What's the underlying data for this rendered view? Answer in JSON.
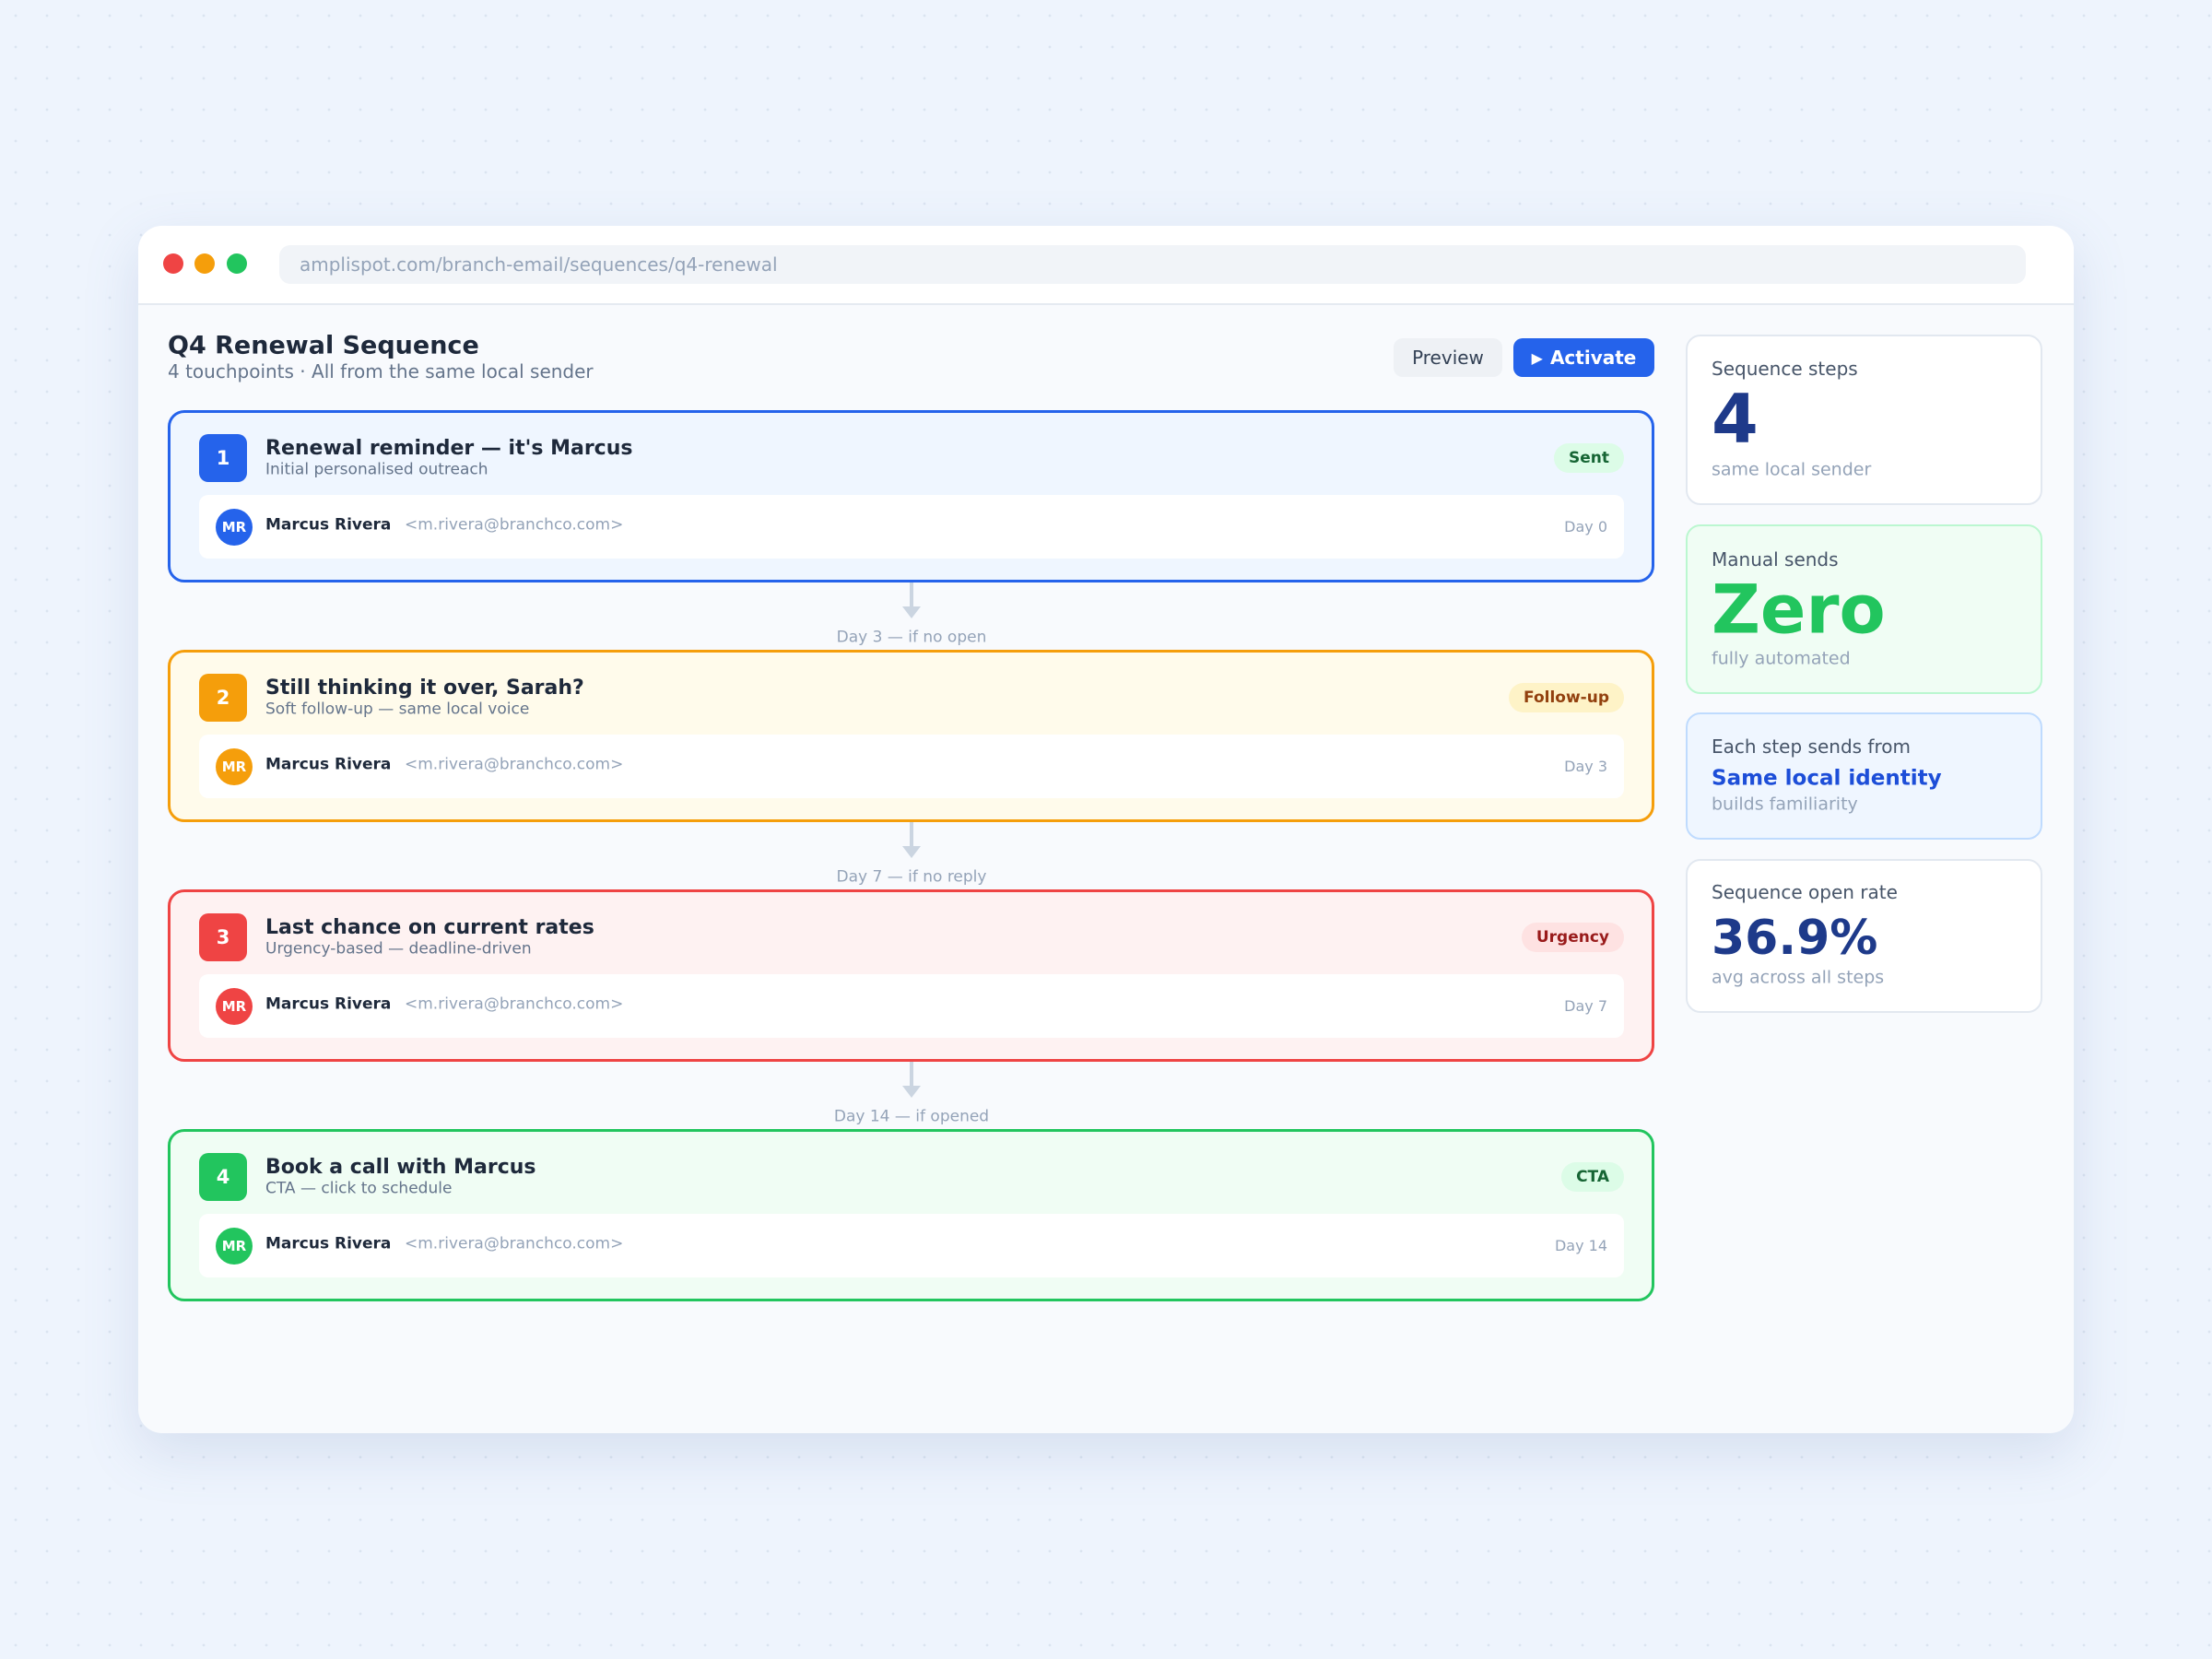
{
  "browser": {
    "url": "amplispot.com/branch-email/sequences/q4-renewal"
  },
  "header": {
    "title": "Q4 Renewal Sequence",
    "subtitle": "4 touchpoints · All from the same local sender"
  },
  "buttons": {
    "preview": "Preview",
    "activate": "Activate"
  },
  "steps": [
    {
      "number": "1",
      "title": "Renewal reminder — it's Marcus",
      "subtitle": "Initial personalised outreach",
      "badge": "Sent",
      "initials": "MR",
      "sender": "Marcus Rivera",
      "email": "<m.rivera@branchco.com>",
      "day": "Day 0"
    },
    {
      "number": "2",
      "title": "Still thinking it over, Sarah?",
      "subtitle": "Soft follow-up — same local voice",
      "badge": "Follow-up",
      "initials": "MR",
      "sender": "Marcus Rivera",
      "email": "<m.rivera@branchco.com>",
      "day": "Day 3"
    },
    {
      "number": "3",
      "title": "Last chance on current rates",
      "subtitle": "Urgency-based — deadline-driven",
      "badge": "Urgency",
      "initials": "MR",
      "sender": "Marcus Rivera",
      "email": "<m.rivera@branchco.com>",
      "day": "Day 7"
    },
    {
      "number": "4",
      "title": "Book a call with Marcus",
      "subtitle": "CTA — click to schedule",
      "badge": "CTA",
      "initials": "MR",
      "sender": "Marcus Rivera",
      "email": "<m.rivera@branchco.com>",
      "day": "Day 14"
    }
  ],
  "connectors": [
    "Day 3 — if no open",
    "Day 7 — if no reply",
    "Day 14 — if opened"
  ],
  "stats": [
    {
      "label": "Sequence steps",
      "value": "4",
      "note": "same local sender"
    },
    {
      "label": "Manual sends",
      "value": "Zero",
      "note": "fully automated"
    },
    {
      "label": "Each step sends from",
      "value": "Same local identity",
      "note": "builds familiarity"
    },
    {
      "label": "Sequence open rate",
      "value": "36.9%",
      "note": "avg across all steps"
    }
  ]
}
